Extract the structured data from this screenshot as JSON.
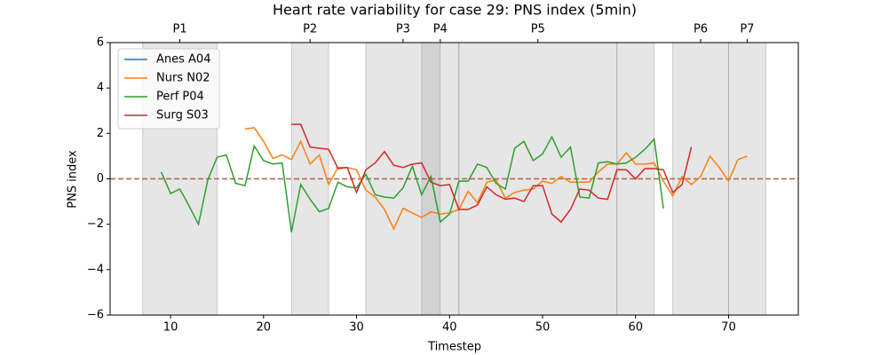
{
  "chart_data": {
    "type": "line",
    "title": "Heart rate variability for case 29: PNS index (5min)",
    "x_label": "Timestep",
    "y_label": "PNS index",
    "xlim": [
      3.5,
      77.5
    ],
    "ylim": [
      -6,
      6
    ],
    "xticks": [
      10,
      20,
      30,
      40,
      50,
      60,
      70
    ],
    "yticks": [
      {
        "value": -6,
        "label": "−6"
      },
      {
        "value": -4,
        "label": "−4"
      },
      {
        "value": -2,
        "label": "−2"
      },
      0,
      2,
      4,
      6
    ],
    "legend": "upper left",
    "hline": {
      "value": 0,
      "color": "#b0643a"
    },
    "spans": [
      {
        "start": 7,
        "end": 15,
        "label": "P1"
      },
      {
        "start": 23,
        "end": 27,
        "label": "P2"
      },
      {
        "start": 31,
        "end": 39,
        "label": "P3"
      },
      {
        "start": 37,
        "end": 41,
        "label": "P4"
      },
      {
        "start": 41,
        "end": 58,
        "label": "P5"
      },
      {
        "start": 58,
        "end": 62,
        "label": null
      },
      {
        "start": 64,
        "end": 70,
        "label": "P6"
      },
      {
        "start": 70,
        "end": 74,
        "label": "P7"
      }
    ],
    "x": [
      9,
      10,
      11,
      12,
      13,
      14,
      15,
      16,
      17,
      18,
      19,
      20,
      21,
      22,
      23,
      24,
      25,
      26,
      27,
      28,
      29,
      30,
      31,
      32,
      33,
      34,
      35,
      36,
      37,
      38,
      39,
      40,
      41,
      42,
      43,
      44,
      45,
      46,
      47,
      48,
      49,
      50,
      51,
      52,
      53,
      54,
      55,
      56,
      57,
      58,
      59,
      60,
      61,
      62,
      63,
      64,
      65,
      66,
      67,
      68,
      69,
      70,
      71,
      72
    ],
    "series": [
      {
        "name": "Anes A04",
        "color": "#1f77b4",
        "values": [
          null,
          null,
          null,
          null,
          null,
          null,
          null,
          null,
          null,
          null,
          null,
          null,
          null,
          null,
          null,
          null,
          null,
          null,
          null,
          null,
          null,
          null,
          null,
          null,
          null,
          null,
          null,
          null,
          null,
          null,
          null,
          null,
          null,
          null,
          null,
          null,
          null,
          null,
          null,
          null,
          null,
          null,
          null,
          null,
          null,
          null,
          null,
          null,
          null,
          null,
          null,
          null,
          null,
          null,
          null,
          null,
          null,
          null,
          null,
          null,
          null,
          null,
          null,
          null
        ]
      },
      {
        "name": "Nurs N02",
        "color": "#ff7f0e",
        "values": [
          null,
          null,
          null,
          null,
          null,
          null,
          null,
          null,
          null,
          2.2,
          2.25,
          1.65,
          0.9,
          1.05,
          0.85,
          1.65,
          0.65,
          1.05,
          -0.25,
          0.5,
          0.5,
          0.4,
          -0.5,
          -0.8,
          -1.35,
          -2.2,
          -1.3,
          -1.5,
          -1.7,
          -1.45,
          -1.55,
          -1.5,
          -1.35,
          -0.55,
          -1.05,
          -0.15,
          -0.05,
          -0.85,
          -0.6,
          -0.5,
          -0.45,
          -0.1,
          -0.2,
          0.1,
          -0.15,
          -0.15,
          -0.15,
          0.3,
          0.65,
          0.65,
          1.15,
          0.65,
          0.65,
          0.7,
          -0.1,
          -0.75,
          0.1,
          -0.25,
          0.1,
          1.0,
          0.5,
          -0.1,
          0.85,
          1.0
        ]
      },
      {
        "name": "Perf P04",
        "color": "#2ca02c",
        "values": [
          0.3,
          -0.65,
          -0.45,
          -1.2,
          -2.0,
          -0.05,
          0.95,
          1.05,
          -0.2,
          -0.3,
          1.45,
          0.8,
          0.65,
          0.7,
          -2.35,
          -0.25,
          -0.9,
          -1.45,
          -1.3,
          -0.15,
          -0.35,
          -0.4,
          0.2,
          -0.7,
          -0.8,
          -0.85,
          -0.4,
          0.55,
          -0.7,
          0.1,
          -1.9,
          -1.55,
          -0.1,
          -0.1,
          0.65,
          0.5,
          -0.2,
          -0.45,
          1.35,
          1.65,
          0.8,
          1.1,
          1.85,
          0.95,
          1.4,
          -0.8,
          -0.85,
          0.7,
          0.75,
          0.65,
          0.7,
          0.95,
          1.3,
          1.75,
          -1.3,
          null,
          null,
          null,
          null,
          null,
          null,
          null,
          null,
          null
        ]
      },
      {
        "name": "Surg S03",
        "color": "#d62728",
        "values": [
          null,
          null,
          null,
          null,
          null,
          null,
          null,
          null,
          null,
          null,
          null,
          null,
          null,
          null,
          2.4,
          2.4,
          1.4,
          1.35,
          1.3,
          0.45,
          0.5,
          -0.6,
          0.4,
          0.7,
          1.2,
          0.6,
          0.5,
          0.65,
          0.7,
          -0.15,
          -0.3,
          -0.25,
          -1.35,
          -1.35,
          -1.15,
          -0.35,
          -0.7,
          -0.9,
          -0.85,
          -1.0,
          -0.3,
          -0.3,
          -1.55,
          -1.9,
          -1.35,
          -0.45,
          -0.5,
          -0.85,
          -0.9,
          0.4,
          0.4,
          0.0,
          0.45,
          0.45,
          0.4,
          -0.6,
          -0.25,
          1.4,
          null,
          null,
          null,
          null,
          null,
          null
        ]
      }
    ]
  }
}
